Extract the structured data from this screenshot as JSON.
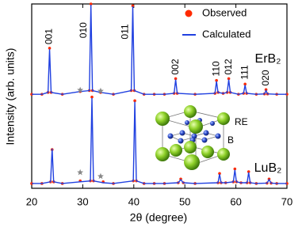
{
  "chart_data": {
    "type": "line",
    "xlabel": "2θ (degree)",
    "ylabel": "Intensity (arb. units)",
    "xlim": [
      20,
      70
    ],
    "xticks": [
      20,
      30,
      40,
      50,
      60,
      70
    ],
    "ylim": [
      0,
      100
    ],
    "legend": "upper right",
    "series": [
      {
        "name": "Observed",
        "color": "#ff2a00",
        "style": "dot",
        "x": [
          20,
          22,
          23.2,
          23.5,
          23.8,
          26,
          29.5,
          31.3,
          31.6,
          31.9,
          33.5,
          36,
          39.5,
          39.8,
          40.1,
          42,
          44,
          46,
          47.9,
          48.2,
          48.5,
          52,
          55.9,
          56.2,
          56.5,
          57.5,
          58.3,
          58.6,
          58.9,
          60.5,
          61.5,
          61.8,
          62.1,
          64,
          65.6,
          65.9,
          66.2,
          68,
          70
        ],
        "values": [
          51,
          51,
          52,
          76,
          52,
          51,
          52.5,
          53,
          100,
          53,
          52,
          51,
          53,
          99,
          53,
          51,
          51,
          51,
          51.5,
          59.5,
          51.5,
          51,
          51.5,
          58.5,
          52,
          51.5,
          52,
          59.5,
          52,
          51,
          51.5,
          56.5,
          51.5,
          51,
          51.2,
          53.5,
          51.2,
          51,
          51
        ]
      },
      {
        "name": "Calculated",
        "color": "#2040e0",
        "style": "line",
        "x": [
          20,
          22,
          23.2,
          23.5,
          23.8,
          26,
          29.5,
          31.3,
          31.6,
          31.9,
          33.5,
          36,
          39.5,
          39.8,
          40.1,
          42,
          44,
          46,
          47.9,
          48.2,
          48.5,
          52,
          55.9,
          56.2,
          56.5,
          57.5,
          58.3,
          58.6,
          58.9,
          60.5,
          61.5,
          61.8,
          62.1,
          64,
          65.6,
          65.9,
          66.2,
          68,
          70
        ],
        "values": [
          51,
          51,
          52,
          75.5,
          52,
          51,
          52.5,
          53,
          99.5,
          53,
          52,
          51,
          53,
          98.7,
          53,
          51,
          51,
          51,
          51.5,
          59,
          51.5,
          51,
          51.5,
          58,
          52,
          51.5,
          52,
          59,
          52,
          51,
          51.5,
          56,
          51.5,
          51,
          51.2,
          53,
          51.2,
          51,
          51
        ]
      },
      {
        "color": "#ff2a00",
        "style": "dot",
        "x": [
          20,
          22,
          23.7,
          24.0,
          24.3,
          26,
          29.5,
          31.5,
          31.8,
          32.1,
          34,
          36,
          39.9,
          40.2,
          40.5,
          42,
          44,
          46,
          48.7,
          49.2,
          49.7,
          52,
          56.5,
          56.8,
          57.1,
          58,
          59.5,
          59.8,
          60.1,
          61,
          62.2,
          62.5,
          62.8,
          64,
          66.1,
          66.5,
          66.9,
          68,
          70
        ],
        "values": [
          2.6,
          2.6,
          3.5,
          21,
          3.5,
          2.6,
          4,
          4,
          49.5,
          4,
          3.5,
          2.6,
          4,
          47.5,
          4,
          2.6,
          2.6,
          2.6,
          3,
          5,
          3,
          2.6,
          3,
          8,
          3,
          3,
          3.5,
          10.5,
          3.5,
          3,
          3,
          9,
          3,
          2.6,
          2.8,
          5,
          2.8,
          2.6,
          2.6
        ]
      },
      {
        "color": "#2040e0",
        "style": "line",
        "x": [
          20,
          22,
          23.7,
          24.0,
          24.3,
          26,
          29.5,
          31.5,
          31.8,
          32.1,
          34,
          36,
          39.9,
          40.2,
          40.5,
          42,
          44,
          46,
          48.7,
          49.2,
          49.7,
          52,
          56.5,
          56.8,
          57.1,
          58,
          59.5,
          59.8,
          60.1,
          61,
          62.2,
          62.5,
          62.8,
          64,
          66.1,
          66.5,
          66.9,
          68,
          70
        ],
        "values": [
          2.6,
          2.6,
          3.5,
          21.5,
          3.5,
          2.6,
          3.5,
          4,
          49,
          4,
          3,
          2.6,
          4,
          47,
          4,
          2.6,
          2.6,
          2.6,
          3,
          4.7,
          3,
          2.6,
          3,
          7.7,
          3,
          3,
          3.5,
          10,
          3.5,
          3,
          3,
          8.6,
          3,
          2.6,
          2.8,
          4.7,
          2.8,
          2.6,
          2.6
        ]
      }
    ],
    "peak_labels": [
      {
        "text": "001",
        "x": 23.5,
        "y": 75.5
      },
      {
        "text": "010",
        "x": 31.6,
        "y": 99.5
      },
      {
        "text": "011",
        "x": 39.8,
        "y": 98.7
      },
      {
        "text": "002",
        "x": 48.2,
        "y": 59
      },
      {
        "text": "110",
        "x": 56.2,
        "y": 58
      },
      {
        "text": "012",
        "x": 58.6,
        "y": 59
      },
      {
        "text": "111",
        "x": 61.8,
        "y": 56
      },
      {
        "text": "020",
        "x": 65.9,
        "y": 53
      }
    ],
    "impurity_marks": [
      {
        "x": 29.5,
        "y": 52
      },
      {
        "x": 33.5,
        "y": 51.5
      },
      {
        "x": 29.5,
        "y": 7.3
      },
      {
        "x": 33.5,
        "y": 5.2
      }
    ],
    "pattern_labels": [
      "ErB₂",
      "LuB₂"
    ],
    "inset_labels": [
      "RE",
      "B"
    ]
  }
}
